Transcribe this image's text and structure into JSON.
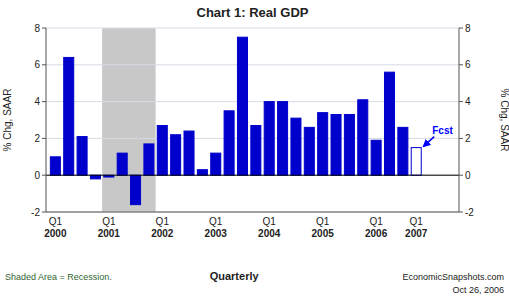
{
  "chart_data": {
    "type": "bar",
    "title": "Chart 1: Real GDP",
    "ylabel": "% Chg, SAAR",
    "y2label": "% Chg, SAAR",
    "xlabel": "Quarterly",
    "categories": [
      "Q1\n2000",
      null,
      null,
      null,
      "Q1\n2001",
      null,
      null,
      null,
      "Q1\n2002",
      null,
      null,
      null,
      "Q1\n2003",
      null,
      null,
      null,
      "Q1\n2004",
      null,
      null,
      null,
      "Q1\n2005",
      null,
      null,
      null,
      "Q1\n2006",
      null,
      null,
      "Q1\n2007"
    ],
    "values": [
      1.0,
      6.4,
      2.1,
      -0.2,
      -0.1,
      1.2,
      -1.6,
      1.7,
      2.7,
      2.2,
      2.4,
      0.3,
      1.2,
      3.5,
      7.5,
      2.7,
      4.0,
      4.0,
      3.1,
      2.6,
      3.4,
      3.3,
      3.3,
      4.1,
      1.9,
      5.6,
      2.6,
      1.5
    ],
    "color": "#0000CC",
    "colors": [
      "#0000CC",
      "#0000CC",
      "#0000CC",
      "#0000CC",
      "#0000CC",
      "#0000CC",
      "#0000CC",
      "#0000CC",
      "#0000CC",
      "#0000CC",
      "#0000CC",
      "#0000CC",
      "#0000CC",
      "#0000CC",
      "#0000CC",
      "#0000CC",
      "#0000CC",
      "#0000CC",
      "#0000CC",
      "#0000CC",
      "#0000CC",
      "#0000CC",
      "#0000CC",
      "#0000CC",
      "#0000CC",
      "#0000CC",
      "#0000CC",
      "#FFFFFF"
    ],
    "ylim": [
      -2,
      8
    ],
    "yticks": [
      -2,
      0,
      2,
      4,
      6,
      8
    ],
    "y2lim": [
      -2,
      8
    ],
    "y2ticks": [
      -2,
      0,
      2,
      4,
      6,
      8
    ],
    "grid": true,
    "shading": {
      "from": 4,
      "to": 7,
      "color": "#C8C8C8"
    },
    "annotations": [
      {
        "text": "Fcst",
        "color": "#0000FF"
      }
    ],
    "notes": [
      {
        "text": "Shaded Area = Recession.",
        "color": "#336633"
      },
      {
        "text": "EconomicSnapshots.com"
      },
      {
        "text": "Oct 26, 2006"
      }
    ]
  }
}
